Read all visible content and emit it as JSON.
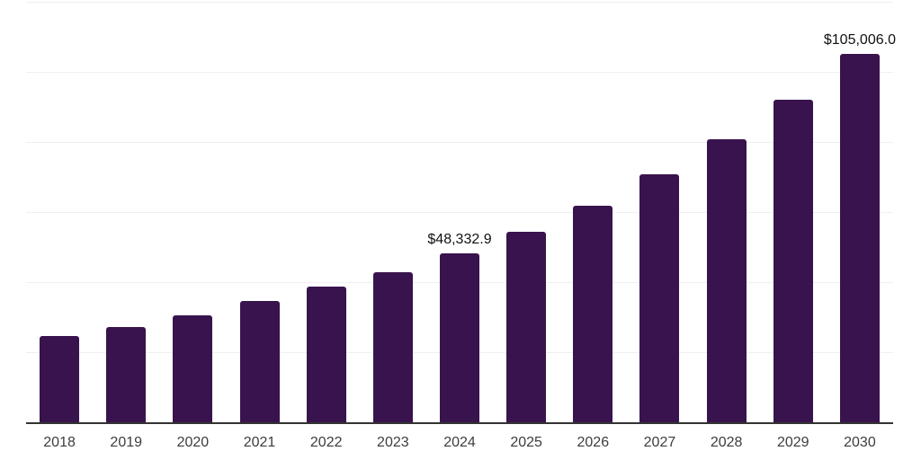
{
  "chart_data": {
    "type": "bar",
    "title": "",
    "xlabel": "",
    "ylabel": "",
    "categories": [
      "2018",
      "2019",
      "2020",
      "2021",
      "2022",
      "2023",
      "2024",
      "2025",
      "2026",
      "2027",
      "2028",
      "2029",
      "2030"
    ],
    "values": [
      24500,
      27300,
      30600,
      34500,
      38700,
      42900,
      48332.9,
      54300,
      61700,
      70700,
      80700,
      92000,
      105006.0
    ],
    "data_labels": {
      "2024": "$48,332.9",
      "2030": "$105,006.0"
    },
    "ylim": [
      0,
      120000
    ],
    "gridline_step": 20000,
    "grid": "horizontal-only",
    "legend": "none",
    "y_axis_tick_labels_visible": false
  },
  "style": {
    "bar_color": "#39134D",
    "gridline_color": "#efefef",
    "axis_color": "#333333",
    "tick_label_color": "#3d3d3d",
    "value_label_color": "#111111",
    "background": "#ffffff"
  }
}
